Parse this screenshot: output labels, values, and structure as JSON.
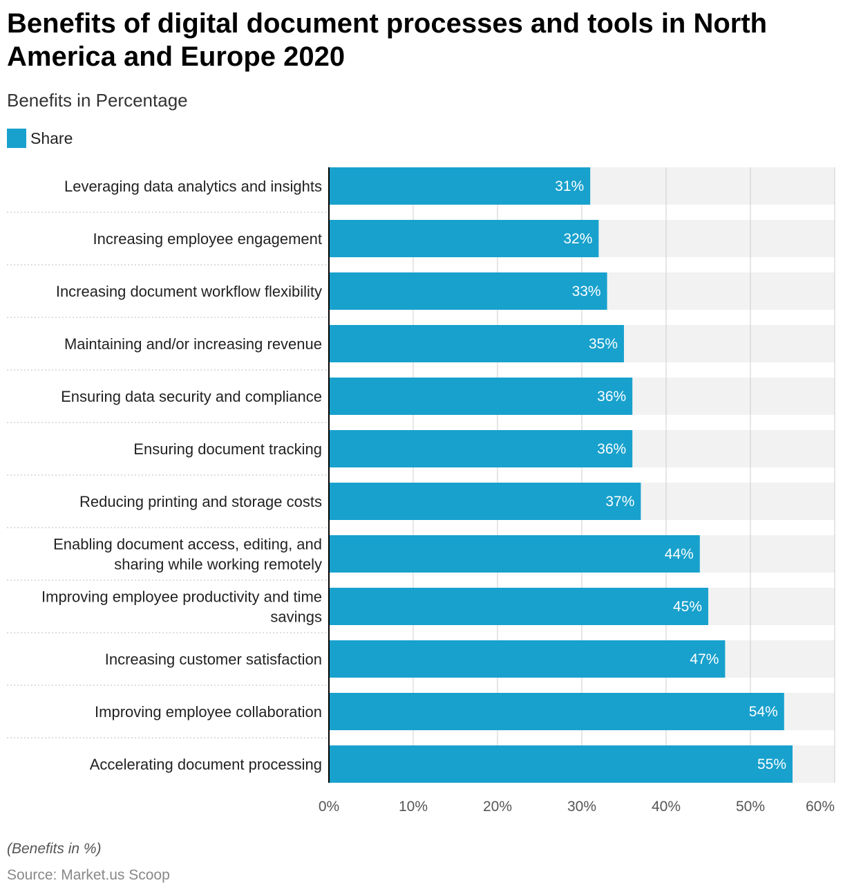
{
  "title": "Benefits of digital document processes and tools in North America and Europe 2020",
  "subtitle": "Benefits in Percentage",
  "footnote": "(Benefits in %)",
  "source": "Source: Market.us Scoop",
  "colors": {
    "bar": "#18a1cd",
    "track": "#f2f2f2",
    "grid": "#cccccc",
    "axis": "#000000"
  },
  "chart_data": {
    "type": "bar",
    "orientation": "horizontal",
    "legend": [
      "Share"
    ],
    "legend_position": "top-left",
    "grid": true,
    "categories": [
      [
        "Leveraging data analytics and insights"
      ],
      [
        "Increasing employee engagement"
      ],
      [
        "Increasing document workflow flexibility"
      ],
      [
        "Maintaining and/or increasing revenue"
      ],
      [
        "Ensuring data security and compliance"
      ],
      [
        "Ensuring document tracking"
      ],
      [
        "Reducing printing and storage costs"
      ],
      [
        "Enabling document access, editing, and",
        "sharing while working remotely"
      ],
      [
        "Improving employee productivity and time",
        "savings"
      ],
      [
        "Increasing customer satisfaction"
      ],
      [
        "Improving employee collaboration"
      ],
      [
        "Accelerating document processing"
      ]
    ],
    "series": [
      {
        "name": "Share",
        "values": [
          31,
          32,
          33,
          35,
          36,
          36,
          37,
          44,
          45,
          47,
          54,
          55
        ]
      }
    ],
    "value_labels": [
      "31%",
      "32%",
      "33%",
      "35%",
      "36%",
      "36%",
      "37%",
      "44%",
      "45%",
      "47%",
      "54%",
      "55%"
    ],
    "xlim": [
      0,
      60
    ],
    "xticks": [
      0,
      10,
      20,
      30,
      40,
      50,
      60
    ],
    "xtick_labels": [
      "0%",
      "10%",
      "20%",
      "30%",
      "40%",
      "50%",
      "60%"
    ]
  }
}
